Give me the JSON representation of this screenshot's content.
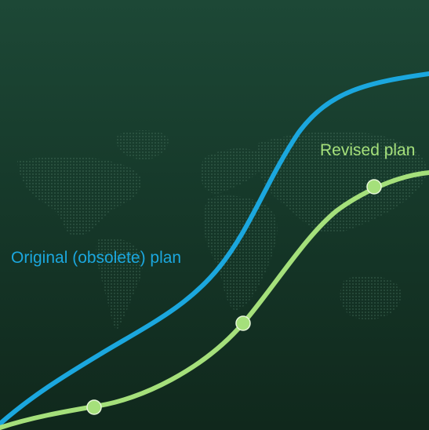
{
  "colors": {
    "background_top": "#1d4836",
    "background_bottom": "#10281c",
    "map_dots": "#4f7a66",
    "original": "#1ba7de",
    "revised": "#a5e07b",
    "marker_stroke": "#e6f7d8"
  },
  "background_decoration": "world-map-dotted",
  "labels": {
    "original": "Original (obsolete) plan",
    "revised": "Revised plan"
  },
  "curves": [
    {
      "id": "original",
      "label_key": "original",
      "markers": 0
    },
    {
      "id": "revised",
      "label_key": "revised",
      "markers": 3
    }
  ]
}
